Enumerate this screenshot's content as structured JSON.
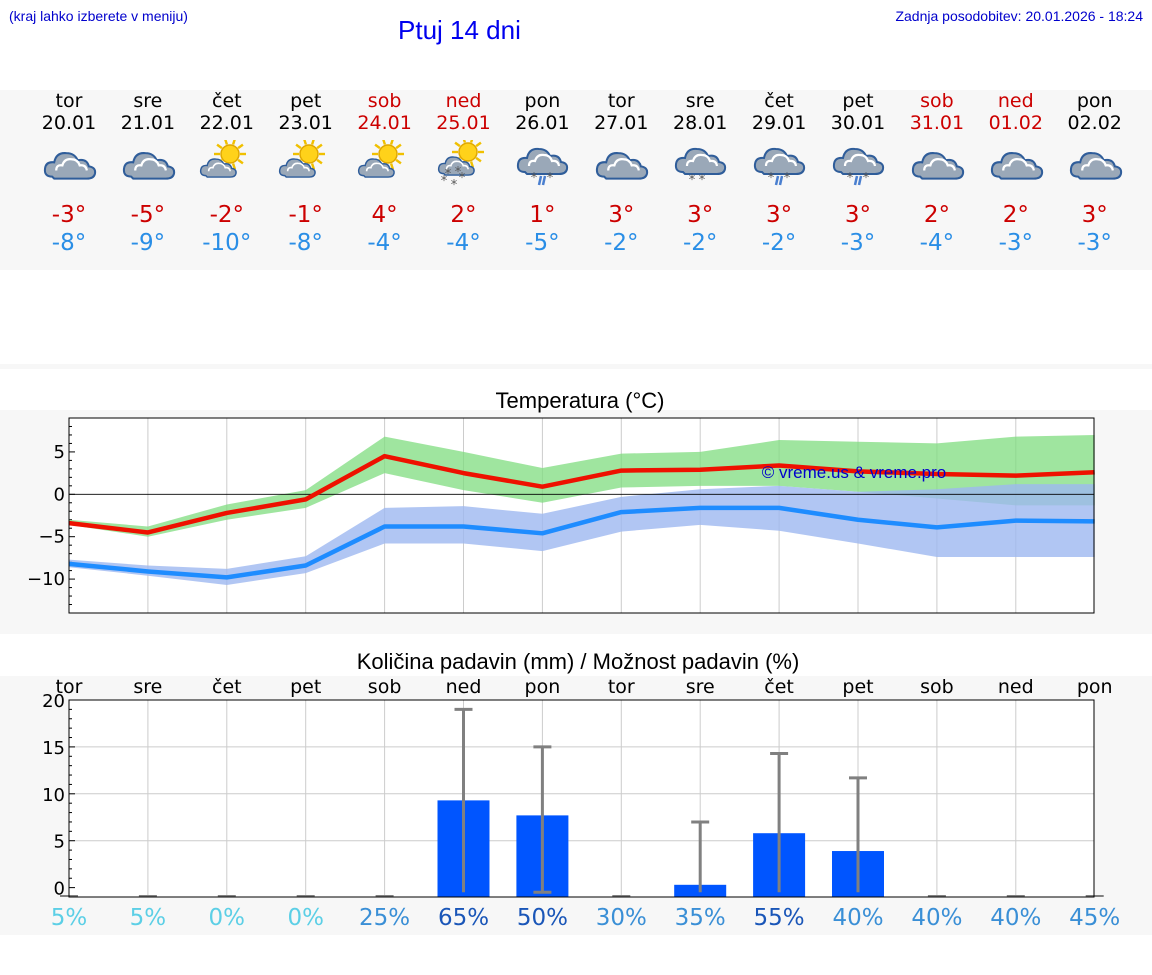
{
  "header": {
    "location_note": "(kraj lahko izberete v meniju)",
    "title": "Ptuj 14 dni",
    "updated": "Zadnja posodobitev: 20.01.2026 - 18:24"
  },
  "days": [
    {
      "name": "tor",
      "date": "20.01",
      "weekend": false,
      "icon": "cloudy-icon",
      "tmax": "-3°",
      "tmin": "-8°",
      "precip": 0,
      "precip_max": 0,
      "chance": "5%"
    },
    {
      "name": "sre",
      "date": "21.01",
      "weekend": false,
      "icon": "cloudy-icon",
      "tmax": "-5°",
      "tmin": "-9°",
      "precip": 0,
      "precip_max": 0,
      "chance": "5%"
    },
    {
      "name": "čet",
      "date": "22.01",
      "weekend": false,
      "icon": "partly-sunny-icon",
      "tmax": "-2°",
      "tmin": "-10°",
      "precip": 0,
      "precip_max": 0,
      "chance": "0%"
    },
    {
      "name": "pet",
      "date": "23.01",
      "weekend": false,
      "icon": "partly-sunny-icon",
      "tmax": "-1°",
      "tmin": "-8°",
      "precip": 0,
      "precip_max": 0,
      "chance": "0%"
    },
    {
      "name": "sob",
      "date": "24.01",
      "weekend": true,
      "icon": "partly-sunny-icon",
      "tmax": "4°",
      "tmin": "-4°",
      "precip": 0,
      "precip_max": 0,
      "chance": "25%"
    },
    {
      "name": "ned",
      "date": "25.01",
      "weekend": true,
      "icon": "sun-snow-icon",
      "tmax": "2°",
      "tmin": "-4°",
      "precip": 9.3,
      "precip_max": 19,
      "chance": "65%"
    },
    {
      "name": "pon",
      "date": "26.01",
      "weekend": false,
      "icon": "sleet-icon",
      "tmax": "1°",
      "tmin": "-5°",
      "precip": 7.7,
      "precip_max": 15,
      "chance": "50%"
    },
    {
      "name": "tor",
      "date": "27.01",
      "weekend": false,
      "icon": "cloudy-icon",
      "tmax": "3°",
      "tmin": "-2°",
      "precip": 0,
      "precip_max": 0,
      "chance": "30%"
    },
    {
      "name": "sre",
      "date": "28.01",
      "weekend": false,
      "icon": "snow-icon",
      "tmax": "3°",
      "tmin": "-2°",
      "precip": 0.3,
      "precip_max": 7,
      "chance": "35%"
    },
    {
      "name": "čet",
      "date": "29.01",
      "weekend": false,
      "icon": "sleet-icon",
      "tmax": "3°",
      "tmin": "-2°",
      "precip": 5.8,
      "precip_max": 14.3,
      "chance": "55%"
    },
    {
      "name": "pet",
      "date": "30.01",
      "weekend": false,
      "icon": "sleet-icon",
      "tmax": "3°",
      "tmin": "-3°",
      "precip": 3.9,
      "precip_max": 11.7,
      "chance": "40%"
    },
    {
      "name": "sob",
      "date": "31.01",
      "weekend": true,
      "icon": "cloudy-icon",
      "tmax": "2°",
      "tmin": "-4°",
      "precip": 0,
      "precip_max": 0,
      "chance": "40%"
    },
    {
      "name": "ned",
      "date": "01.02",
      "weekend": true,
      "icon": "cloudy-icon",
      "tmax": "2°",
      "tmin": "-3°",
      "precip": 0,
      "precip_max": 0,
      "chance": "40%"
    },
    {
      "name": "pon",
      "date": "02.02",
      "weekend": false,
      "icon": "cloudy-icon",
      "tmax": "3°",
      "tmin": "-3°",
      "precip": 0,
      "precip_max": 0,
      "chance": "45%"
    }
  ],
  "chart_data": [
    {
      "type": "line",
      "title": "Temperatura (°C)",
      "watermark": "© vreme.us & vreme.pro",
      "ylim": [
        -14,
        9
      ],
      "yticks": [
        "5",
        "0",
        "−5",
        "−10"
      ],
      "ytick_values": [
        5,
        0,
        -5,
        -10
      ],
      "x": [
        0,
        1,
        2,
        3,
        4,
        5,
        6,
        7,
        8,
        9,
        10,
        11,
        12,
        13
      ],
      "series": [
        {
          "name": "max",
          "color": "#ee1100",
          "values": [
            -3.4,
            -4.5,
            -2.2,
            -0.6,
            4.5,
            2.5,
            0.9,
            2.8,
            2.9,
            3.4,
            2.7,
            2.4,
            2.2,
            2.6
          ],
          "band_low": [
            -3.6,
            -5.0,
            -3.0,
            -1.6,
            2.5,
            0.5,
            -1.0,
            0.8,
            1.0,
            1.0,
            0.3,
            -0.5,
            -1.3,
            -1.3
          ],
          "band_high": [
            -3.0,
            -3.8,
            -1.2,
            0.5,
            6.8,
            5.0,
            3.1,
            4.8,
            5.0,
            6.4,
            6.2,
            6.0,
            6.8,
            7.0
          ],
          "band_color": "#7fdc7f"
        },
        {
          "name": "min",
          "color": "#1e8cff",
          "values": [
            -8.2,
            -9.1,
            -9.8,
            -8.4,
            -3.8,
            -3.8,
            -4.6,
            -2.1,
            -1.6,
            -1.6,
            -3.0,
            -3.9,
            -3.1,
            -3.2
          ],
          "band_low": [
            -8.6,
            -9.6,
            -10.7,
            -9.3,
            -5.8,
            -5.8,
            -6.7,
            -4.4,
            -3.6,
            -4.3,
            -5.8,
            -7.4,
            -7.4,
            -7.4
          ],
          "band_high": [
            -7.7,
            -8.4,
            -8.8,
            -7.3,
            -1.6,
            -1.4,
            -2.3,
            -0.3,
            0.6,
            1.0,
            0.3,
            0.6,
            1.2,
            1.2
          ],
          "band_color": "#9db8f0"
        }
      ]
    },
    {
      "type": "bar",
      "title": "Količina padavin (mm) / Možnost padavin (%)",
      "ylim": [
        -1,
        20
      ],
      "yticks": [
        "20",
        "15",
        "10",
        "5",
        "0"
      ],
      "ytick_values": [
        20,
        15,
        10,
        5,
        0
      ],
      "categories": [
        "tor",
        "sre",
        "čet",
        "pet",
        "sob",
        "ned",
        "pon",
        "tor",
        "sre",
        "čet",
        "pet",
        "sob",
        "ned",
        "pon"
      ],
      "values": [
        0,
        0,
        0,
        0,
        0,
        9.3,
        7.7,
        0,
        0.3,
        5.8,
        3.9,
        0,
        0,
        0
      ],
      "error_high": [
        0,
        0,
        0,
        0,
        0,
        19,
        15,
        0,
        7,
        14.3,
        11.7,
        0,
        0,
        0
      ],
      "chance_pct": [
        5,
        5,
        0,
        0,
        25,
        65,
        50,
        30,
        35,
        55,
        40,
        40,
        40,
        45
      ],
      "bar_color": "#0055ff"
    }
  ]
}
